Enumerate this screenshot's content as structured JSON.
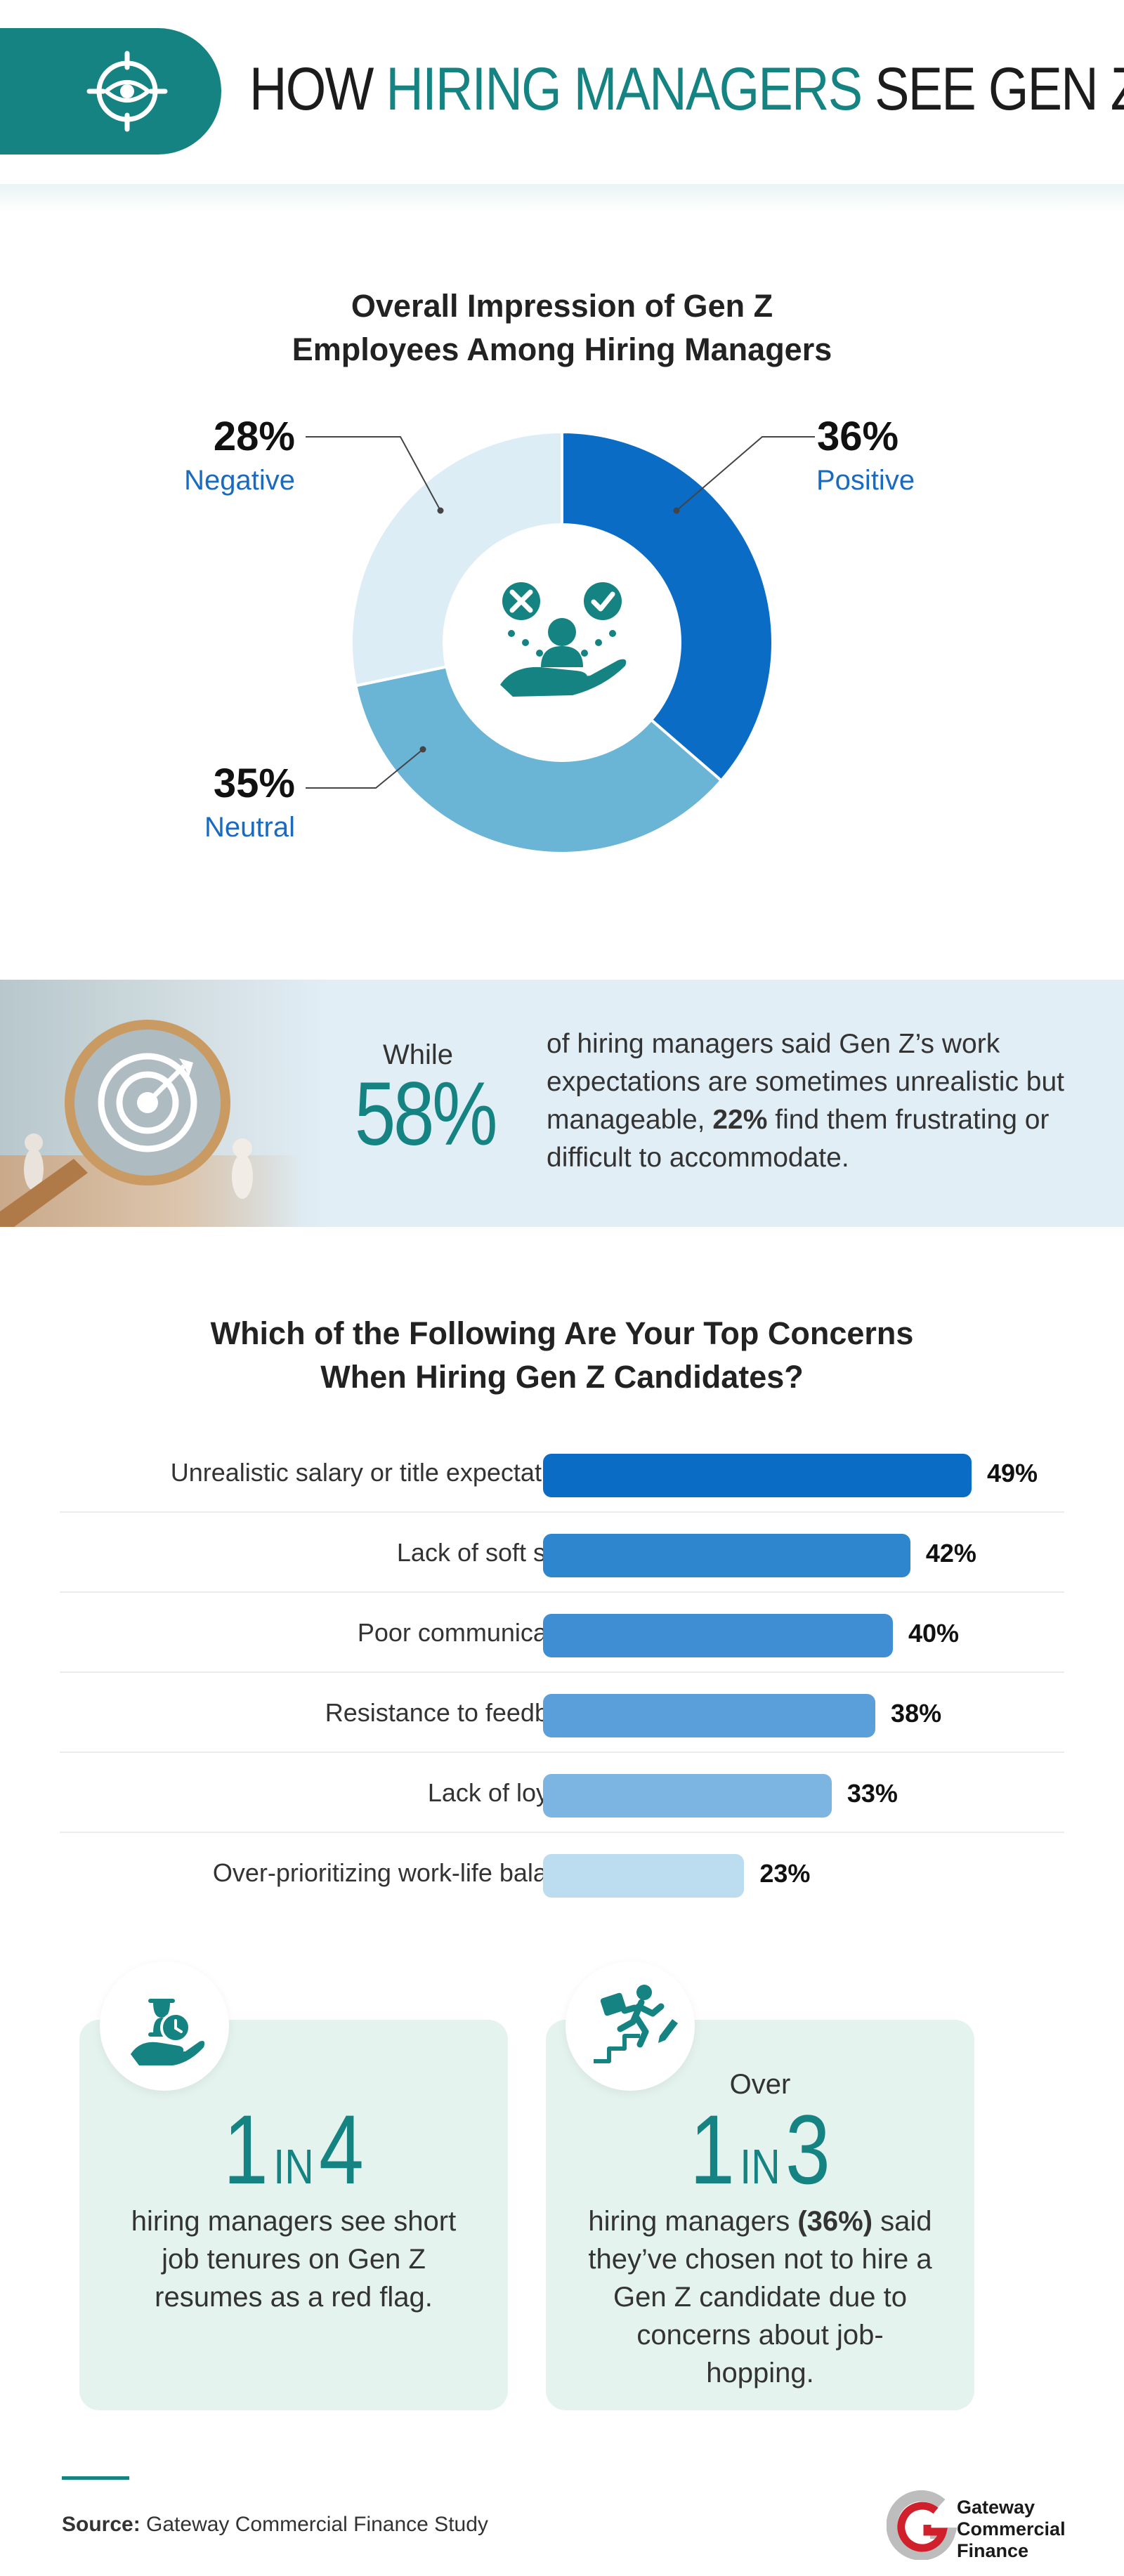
{
  "header": {
    "title_part1": "HOW ",
    "title_accent": "HIRING MANAGERS",
    "title_part2": " SEE GEN Z",
    "icon": "eye-target-icon",
    "accent_color": "#148381"
  },
  "donut": {
    "title_line1": "Overall Impression of Gen Z",
    "title_line2": "Employees Among Hiring Managers",
    "center_icon": "decision-hand-icon",
    "labels": [
      {
        "pct": "36%",
        "label": "Positive"
      },
      {
        "pct": "35%",
        "label": "Neutral"
      },
      {
        "pct": "28%",
        "label": "Negative"
      }
    ]
  },
  "banner": {
    "while": "While",
    "big": "58%",
    "text_a": "of hiring managers said Gen Z’s work expectations are sometimes unrealistic but manageable, ",
    "text_bold": "22%",
    "text_b": " find them frustrating or difficult to accommodate.",
    "icon": "magnifier-target-icon"
  },
  "bars": {
    "title_line1": "Which of the Following Are Your Top Concerns",
    "title_line2": "When Hiring Gen Z Candidates?",
    "labels": [
      "49%",
      "42%",
      "40%",
      "38%",
      "33%",
      "23%"
    ]
  },
  "cards": {
    "left": {
      "icon": "hourglass-hand-icon",
      "num1": "1",
      "in": "IN",
      "num2": "4",
      "text": "hiring managers see short job tenures on Gen Z resumes as a red flag."
    },
    "right": {
      "icon": "job-hopping-stairs-icon",
      "over": "Over",
      "num1": "1",
      "in": "IN",
      "num2": "3",
      "text_a": "hiring managers ",
      "text_bold": "(36%)",
      "text_b": " said they’ve chosen not to hire a Gen Z candidate due to concerns about job-hopping."
    }
  },
  "footer": {
    "source_label": "Source:",
    "source_text": " Gateway Commercial Finance Study",
    "logo_line1": "Gateway",
    "logo_line2": "Commercial",
    "logo_line3": "Finance",
    "logo_icon": "gateway-logo-icon"
  },
  "chart_data": [
    {
      "type": "pie",
      "title": "Overall Impression of Gen Z Employees Among Hiring Managers",
      "categories": [
        "Positive",
        "Neutral",
        "Negative"
      ],
      "values": [
        36,
        35,
        28
      ],
      "colors": [
        "#0a6cc4",
        "#6ab4d6",
        "#dcedf6"
      ],
      "legend": "labels-outside"
    },
    {
      "type": "bar",
      "orientation": "horizontal",
      "title": "Which of the Following Are Your Top Concerns When Hiring Gen Z Candidates?",
      "categories": [
        "Unrealistic salary or title expectations",
        "Lack of soft skills",
        "Poor communication",
        "Resistance to feedback",
        "Lack of loyalty",
        "Over-prioritizing work-life balance"
      ],
      "values": [
        49,
        42,
        40,
        38,
        33,
        23
      ],
      "colors": [
        "#0a6cc4",
        "#2e86cf",
        "#3f8ed3",
        "#5a9fd9",
        "#7db5e2",
        "#bcdcef"
      ],
      "unit": "%",
      "xlim": [
        0,
        60
      ]
    }
  ]
}
